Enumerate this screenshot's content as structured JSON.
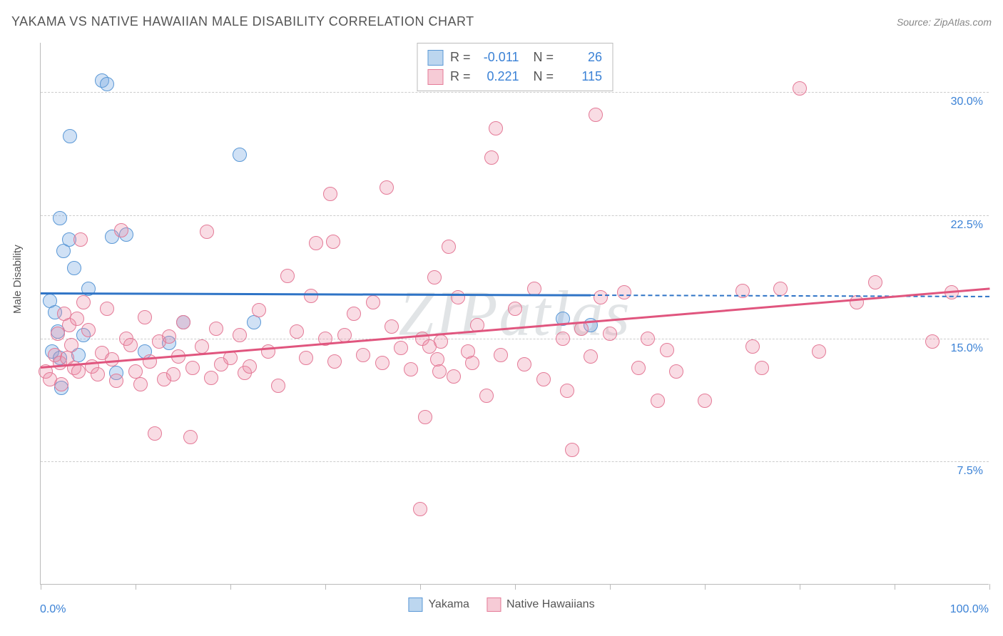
{
  "title": "YAKAMA VS NATIVE HAWAIIAN MALE DISABILITY CORRELATION CHART",
  "source": "Source: ZipAtlas.com",
  "watermark": "ZIPatlas",
  "chart": {
    "type": "scatter",
    "ylabel": "Male Disability",
    "xlim": [
      0,
      100
    ],
    "ylim": [
      0,
      33
    ],
    "x_ticks": [
      0,
      10,
      20,
      30,
      40,
      50,
      60,
      70,
      80,
      90,
      100
    ],
    "x_tick_labels": {
      "start": "0.0%",
      "end": "100.0%"
    },
    "y_gridlines": [
      7.5,
      15.0,
      22.5,
      30.0
    ],
    "y_tick_labels": [
      "7.5%",
      "15.0%",
      "22.5%",
      "30.0%"
    ],
    "background_color": "#ffffff",
    "grid_color": "#cccccc",
    "axis_color": "#bbbbbb",
    "label_color": "#555555",
    "tick_value_color": "#3b82d6",
    "marker_radius": 10,
    "marker_border_width": 1.5,
    "series": [
      {
        "name": "Yakama",
        "fill_color": "rgba(120,170,225,0.35)",
        "stroke_color": "#5a98d6",
        "legend_swatch_fill": "#bcd6ef",
        "legend_swatch_stroke": "#5a98d6",
        "R": "-0.011",
        "N": "26",
        "trend": {
          "y_at_x0": 17.8,
          "y_at_x100": 17.6,
          "solid_until_x": 58,
          "color": "#2f74c6"
        },
        "points": [
          [
            1.0,
            17.3
          ],
          [
            1.2,
            14.2
          ],
          [
            1.5,
            16.6
          ],
          [
            1.8,
            15.4
          ],
          [
            2.0,
            13.8
          ],
          [
            2.0,
            22.3
          ],
          [
            2.2,
            12.0
          ],
          [
            2.4,
            20.3
          ],
          [
            3.0,
            21.0
          ],
          [
            3.1,
            27.3
          ],
          [
            3.5,
            19.3
          ],
          [
            4.0,
            14.0
          ],
          [
            4.5,
            15.2
          ],
          [
            5.0,
            18.0
          ],
          [
            6.5,
            30.7
          ],
          [
            7.0,
            30.5
          ],
          [
            7.5,
            21.2
          ],
          [
            8.0,
            12.9
          ],
          [
            9.0,
            21.3
          ],
          [
            11.0,
            14.2
          ],
          [
            13.5,
            14.7
          ],
          [
            15.0,
            16.0
          ],
          [
            21.0,
            26.2
          ],
          [
            22.5,
            16.0
          ],
          [
            55.0,
            16.2
          ],
          [
            58.0,
            15.8
          ]
        ]
      },
      {
        "name": "Native Hawaiians",
        "fill_color": "rgba(235,140,165,0.30)",
        "stroke_color": "#e47a97",
        "legend_swatch_fill": "#f6cbd6",
        "legend_swatch_stroke": "#e47a97",
        "R": "0.221",
        "N": "115",
        "trend": {
          "y_at_x0": 13.3,
          "y_at_x100": 18.1,
          "solid_until_x": 100,
          "color": "#e0557e"
        },
        "points": [
          [
            0.5,
            13.0
          ],
          [
            1.0,
            12.5
          ],
          [
            1.5,
            14.0
          ],
          [
            1.8,
            15.3
          ],
          [
            2.0,
            13.5
          ],
          [
            2.2,
            12.2
          ],
          [
            2.5,
            16.5
          ],
          [
            2.8,
            13.8
          ],
          [
            3.0,
            15.8
          ],
          [
            3.2,
            14.6
          ],
          [
            3.5,
            13.2
          ],
          [
            3.8,
            16.2
          ],
          [
            4.0,
            13.0
          ],
          [
            4.2,
            21.0
          ],
          [
            4.5,
            17.2
          ],
          [
            5.0,
            15.5
          ],
          [
            5.4,
            13.3
          ],
          [
            6.0,
            12.8
          ],
          [
            6.5,
            14.1
          ],
          [
            7.0,
            16.8
          ],
          [
            7.5,
            13.7
          ],
          [
            8.0,
            12.4
          ],
          [
            8.5,
            21.6
          ],
          [
            9.0,
            15.0
          ],
          [
            9.5,
            14.6
          ],
          [
            10.0,
            13.0
          ],
          [
            10.5,
            12.2
          ],
          [
            11.0,
            16.3
          ],
          [
            11.5,
            13.6
          ],
          [
            12.0,
            9.2
          ],
          [
            12.5,
            14.8
          ],
          [
            13.0,
            12.5
          ],
          [
            13.5,
            15.1
          ],
          [
            14.0,
            12.8
          ],
          [
            14.5,
            13.9
          ],
          [
            15.0,
            16.0
          ],
          [
            15.8,
            9.0
          ],
          [
            16.0,
            13.2
          ],
          [
            17.0,
            14.5
          ],
          [
            17.5,
            21.5
          ],
          [
            18.0,
            12.6
          ],
          [
            18.5,
            15.6
          ],
          [
            19.0,
            13.4
          ],
          [
            20.0,
            13.8
          ],
          [
            21.0,
            15.2
          ],
          [
            21.5,
            12.9
          ],
          [
            22.0,
            13.3
          ],
          [
            23.0,
            16.7
          ],
          [
            24.0,
            14.2
          ],
          [
            25.0,
            12.1
          ],
          [
            26.0,
            18.8
          ],
          [
            27.0,
            15.4
          ],
          [
            28.0,
            13.8
          ],
          [
            28.5,
            17.6
          ],
          [
            29.0,
            20.8
          ],
          [
            30.0,
            15.0
          ],
          [
            30.5,
            23.8
          ],
          [
            30.8,
            20.9
          ],
          [
            31.0,
            13.6
          ],
          [
            32.0,
            15.2
          ],
          [
            33.0,
            16.5
          ],
          [
            34.0,
            14.0
          ],
          [
            35.0,
            17.2
          ],
          [
            36.0,
            13.5
          ],
          [
            36.5,
            24.2
          ],
          [
            37.0,
            15.7
          ],
          [
            38.0,
            14.4
          ],
          [
            39.0,
            13.1
          ],
          [
            40.0,
            4.6
          ],
          [
            40.2,
            15.0
          ],
          [
            40.5,
            10.2
          ],
          [
            41.0,
            14.5
          ],
          [
            41.5,
            18.7
          ],
          [
            41.8,
            13.7
          ],
          [
            42.0,
            13.0
          ],
          [
            42.2,
            14.8
          ],
          [
            43.0,
            20.6
          ],
          [
            43.5,
            12.7
          ],
          [
            44.0,
            17.5
          ],
          [
            45.0,
            14.2
          ],
          [
            45.5,
            13.5
          ],
          [
            46.0,
            15.8
          ],
          [
            47.0,
            11.5
          ],
          [
            47.5,
            26.0
          ],
          [
            48.0,
            27.8
          ],
          [
            48.5,
            14.0
          ],
          [
            50.0,
            16.8
          ],
          [
            51.0,
            13.4
          ],
          [
            52.0,
            18.0
          ],
          [
            53.0,
            12.5
          ],
          [
            55.0,
            15.0
          ],
          [
            55.5,
            11.8
          ],
          [
            56.0,
            8.2
          ],
          [
            57.0,
            15.6
          ],
          [
            58.0,
            13.9
          ],
          [
            58.5,
            28.6
          ],
          [
            59.0,
            17.5
          ],
          [
            60.0,
            15.3
          ],
          [
            61.5,
            17.8
          ],
          [
            63.0,
            13.2
          ],
          [
            64.0,
            15.0
          ],
          [
            65.0,
            11.2
          ],
          [
            66.0,
            14.3
          ],
          [
            67.0,
            13.0
          ],
          [
            70.0,
            11.2
          ],
          [
            74.0,
            17.9
          ],
          [
            75.0,
            14.5
          ],
          [
            76.0,
            13.2
          ],
          [
            78.0,
            18.0
          ],
          [
            80.0,
            30.2
          ],
          [
            82.0,
            14.2
          ],
          [
            86.0,
            17.2
          ],
          [
            88.0,
            18.4
          ],
          [
            94.0,
            14.8
          ],
          [
            96.0,
            17.8
          ]
        ]
      }
    ]
  },
  "bottom_legend": [
    {
      "label": "Yakama",
      "fill": "#bcd6ef",
      "stroke": "#5a98d6"
    },
    {
      "label": "Native Hawaiians",
      "fill": "#f6cbd6",
      "stroke": "#e47a97"
    }
  ]
}
